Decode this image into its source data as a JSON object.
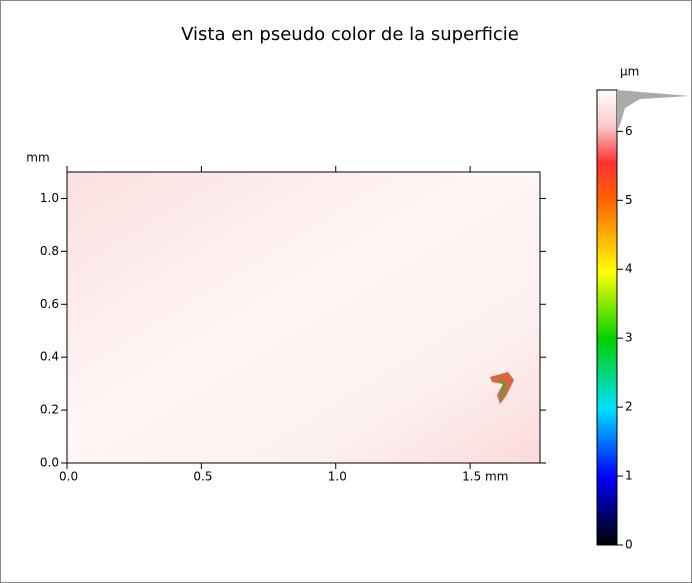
{
  "chart_data": {
    "type": "image",
    "title": "Vista en pseudo color de la superficie",
    "y_unit": "mm",
    "xlim": [
      0,
      1.76
    ],
    "ylim": [
      0,
      1.1
    ],
    "xticks": [
      {
        "value": 0,
        "label": "0.0"
      },
      {
        "value": 0.5,
        "label": "0.5"
      },
      {
        "value": 1,
        "label": "1.0"
      },
      {
        "value": 1.5,
        "label": "1.5 mm"
      }
    ],
    "yticks": [
      {
        "value": 0,
        "label": "0.0"
      },
      {
        "value": 0.2,
        "label": "0.2"
      },
      {
        "value": 0.4,
        "label": "0.4"
      },
      {
        "value": 0.6,
        "label": "0.6"
      },
      {
        "value": 0.8,
        "label": "0.8"
      },
      {
        "value": 1,
        "label": "1.0"
      }
    ],
    "colorbar": {
      "unit": "µm",
      "zlim": [
        0,
        6.6
      ],
      "zticks": [
        0,
        1,
        2,
        3,
        4,
        5,
        6
      ]
    }
  }
}
